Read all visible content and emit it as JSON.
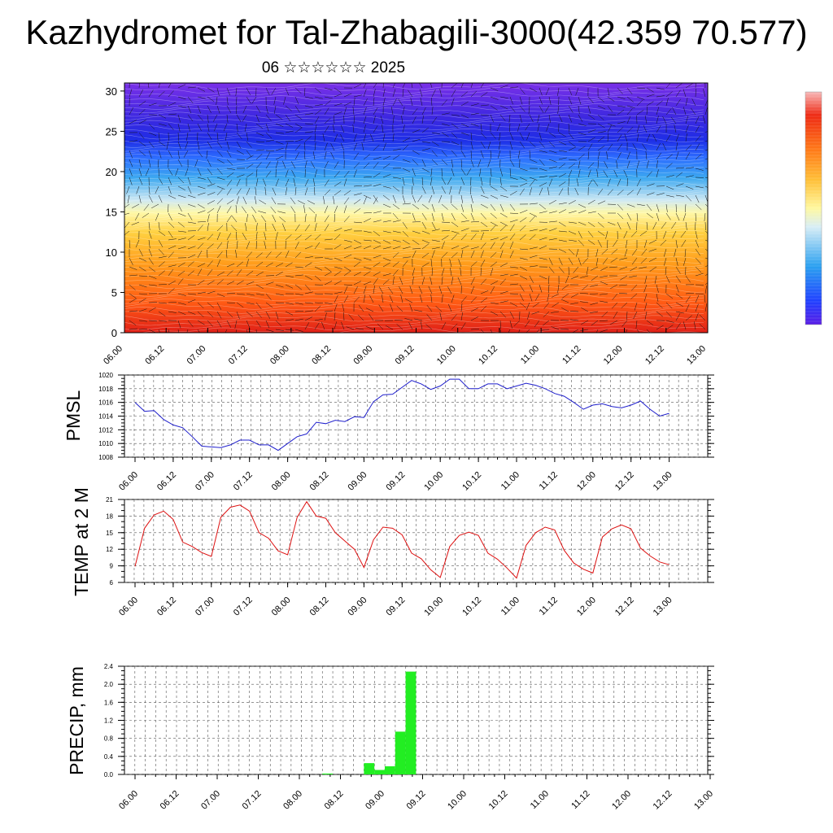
{
  "title": "Kazhydromet for Tal-Zhabagili-3000(42.359 70.577)",
  "subtitle": "06 ☆☆☆☆☆☆ 2025",
  "x_tick_labels": [
    "06.00",
    "06.12",
    "07.00",
    "07.12",
    "08.00",
    "08.12",
    "09.00",
    "09.12",
    "10.00",
    "10.12",
    "11.00",
    "11.12",
    "12.00",
    "12.12",
    "13.00"
  ],
  "chart_data": [
    {
      "type": "heatmap",
      "description_of_fill": "temperature shading by height level with wind vectors overlaid",
      "y_ticks": [
        0,
        5,
        10,
        15,
        20,
        25,
        30
      ],
      "ylim": [
        0,
        31
      ],
      "x_ticks": [
        "06.00",
        "06.12",
        "07.00",
        "07.12",
        "08.00",
        "08.12",
        "09.00",
        "09.12",
        "10.00",
        "10.12",
        "11.00",
        "11.12",
        "12.00",
        "12.12",
        "13.00"
      ],
      "colorbar": "blue-to-red scale, unlabeled",
      "colors": [
        "#5a1ee6",
        "#2850ff",
        "#3ca8f0",
        "#cfe9f3",
        "#fff8a8",
        "#ffd040",
        "#ff9a1a",
        "#ff5a14",
        "#e02018"
      ]
    },
    {
      "type": "line",
      "ylabel": "PMSL",
      "ylim": [
        1008,
        1020
      ],
      "y_ticks": [
        1008,
        1010,
        1012,
        1014,
        1016,
        1018,
        1020
      ],
      "x_ticks": [
        "06.00",
        "06.12",
        "07.00",
        "07.12",
        "08.00",
        "08.12",
        "09.00",
        "09.12",
        "10.00",
        "10.12",
        "11.00",
        "11.12",
        "12.00",
        "12.12",
        "13.00"
      ],
      "x_step_hours": 3,
      "series": [
        {
          "color": "#1f1fcc",
          "values": [
            1016.0,
            1014.7,
            1014.8,
            1013.5,
            1012.7,
            1012.3,
            1011.0,
            1009.6,
            1009.5,
            1009.4,
            1009.8,
            1010.5,
            1010.5,
            1009.8,
            1009.8,
            1009.0,
            1010.0,
            1011.0,
            1011.4,
            1013.1,
            1012.9,
            1013.4,
            1013.2,
            1013.9,
            1013.8,
            1016.1,
            1017.1,
            1017.2,
            1018.2,
            1019.2,
            1018.7,
            1017.9,
            1018.4,
            1019.4,
            1019.4,
            1018.0,
            1018.0,
            1018.7,
            1018.7,
            1018.0,
            1018.4,
            1018.8,
            1018.5,
            1018.0,
            1017.3,
            1016.9,
            1016.0,
            1015.0,
            1015.6,
            1015.8,
            1015.4,
            1015.2,
            1015.6,
            1016.2,
            1015.0,
            1014.0,
            1014.4
          ]
        }
      ]
    },
    {
      "type": "line",
      "ylabel": "TEMP at 2 M",
      "ylim": [
        6,
        21
      ],
      "y_ticks": [
        6,
        9,
        12,
        15,
        18,
        21
      ],
      "x_ticks": [
        "06.00",
        "06.12",
        "07.00",
        "07.12",
        "08.00",
        "08.12",
        "09.00",
        "09.12",
        "10.00",
        "10.12",
        "11.00",
        "11.12",
        "12.00",
        "12.12",
        "13.00"
      ],
      "x_step_hours": 3,
      "series": [
        {
          "color": "#dd1111",
          "values": [
            8.9,
            15.8,
            18.2,
            18.9,
            17.4,
            13.3,
            12.5,
            11.4,
            10.7,
            17.8,
            19.6,
            20.0,
            18.9,
            15.0,
            14.0,
            11.7,
            11.0,
            17.8,
            20.6,
            18.0,
            17.6,
            15.0,
            13.5,
            12.0,
            8.7,
            13.7,
            16.0,
            15.8,
            14.6,
            11.3,
            10.3,
            8.3,
            6.9,
            12.5,
            14.5,
            15.1,
            14.5,
            11.3,
            10.2,
            8.6,
            6.8,
            12.7,
            15.0,
            16.0,
            15.5,
            11.8,
            9.5,
            8.4,
            7.7,
            14.2,
            15.7,
            16.4,
            15.7,
            12.2,
            10.8,
            9.7,
            9.2
          ]
        }
      ]
    },
    {
      "type": "bar",
      "ylabel": "PRECIP, mm",
      "ylim": [
        0,
        2.4
      ],
      "y_ticks": [
        "0.0",
        "0.4",
        "0.8",
        "1.2",
        "1.6",
        "2.0",
        "2.4"
      ],
      "x_ticks": [
        "06.00",
        "06.12",
        "07.00",
        "07.12",
        "08.00",
        "08.12",
        "09.00",
        "09.12",
        "10.00",
        "10.12",
        "11.00",
        "11.12",
        "12.00",
        "12.12",
        "13.00"
      ],
      "x_step_hours": 3,
      "series": [
        {
          "color": "#22ee22",
          "values": [
            0,
            0,
            0,
            0,
            0,
            0,
            0,
            0,
            0,
            0,
            0,
            0,
            0,
            0,
            0,
            0,
            0,
            0,
            0,
            0.02,
            0,
            0,
            0,
            0.25,
            0.1,
            0.18,
            0.95,
            2.28,
            0,
            0,
            0,
            0,
            0,
            0,
            0,
            0,
            0,
            0,
            0,
            0,
            0,
            0,
            0,
            0,
            0,
            0,
            0,
            0,
            0,
            0,
            0,
            0,
            0,
            0,
            0,
            0
          ]
        }
      ]
    }
  ]
}
